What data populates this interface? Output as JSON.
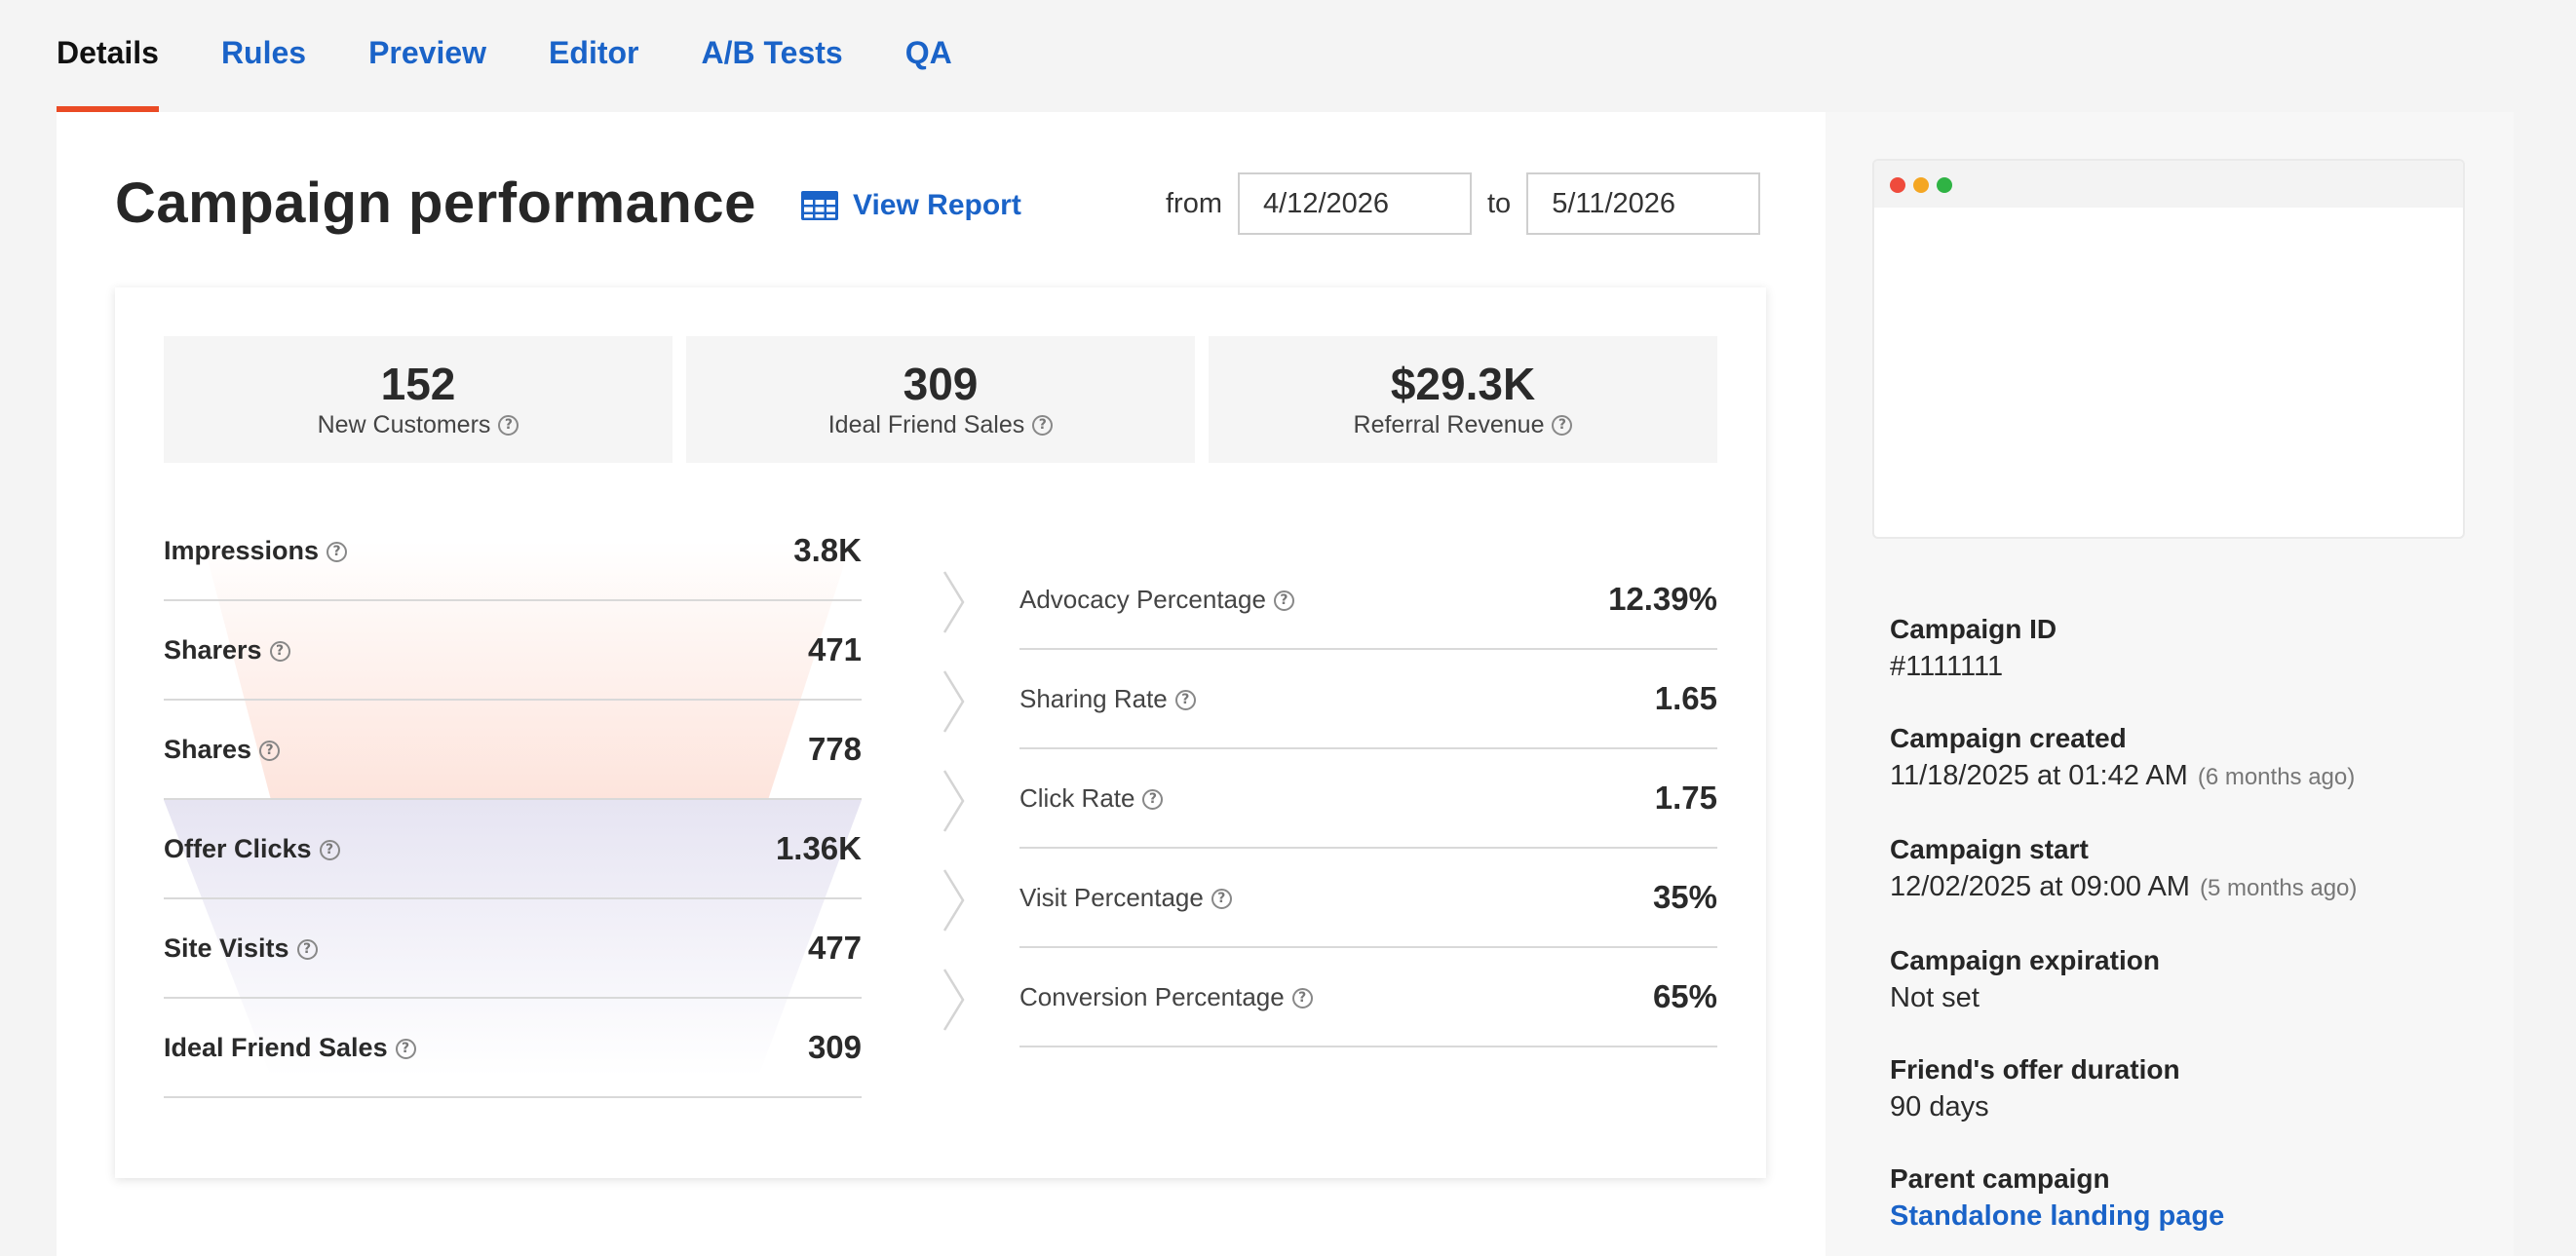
{
  "tabs": [
    {
      "label": "Details",
      "active": true
    },
    {
      "label": "Rules"
    },
    {
      "label": "Preview"
    },
    {
      "label": "Editor"
    },
    {
      "label": "A/B Tests"
    },
    {
      "label": "QA"
    }
  ],
  "header": {
    "title": "Campaign performance",
    "view_report": "View Report",
    "view_report_icon": "table-grid-icon",
    "from_label": "from",
    "from_date": "4/12/2026",
    "to_label": "to",
    "to_date": "5/11/2026"
  },
  "stats": [
    {
      "value": "152",
      "label": "New Customers"
    },
    {
      "value": "309",
      "label": "Ideal Friend Sales"
    },
    {
      "value": "$29.3K",
      "label": "Referral Revenue"
    }
  ],
  "funnel": [
    {
      "label": "Impressions",
      "value": "3.8K"
    },
    {
      "label": "Sharers",
      "value": "471"
    },
    {
      "label": "Shares",
      "value": "778"
    },
    {
      "label": "Offer Clicks",
      "value": "1.36K"
    },
    {
      "label": "Site Visits",
      "value": "477"
    },
    {
      "label": "Ideal Friend Sales",
      "value": "309"
    }
  ],
  "rates": [
    {
      "label": "Advocacy Percentage",
      "value": "12.39%"
    },
    {
      "label": "Sharing Rate",
      "value": "1.65"
    },
    {
      "label": "Click Rate",
      "value": "1.75"
    },
    {
      "label": "Visit Percentage",
      "value": "35%"
    },
    {
      "label": "Conversion Percentage",
      "value": "65%"
    }
  ],
  "help_glyph": "?",
  "colors": {
    "accent": "#ea4b25",
    "link": "#1a63c8",
    "funnel_top": "#fde4dc",
    "funnel_bottom": "#e6e4f2"
  },
  "side": {
    "campaign_id_label": "Campaign ID",
    "campaign_id": "#1111111",
    "created_label": "Campaign created",
    "created": "11/18/2025 at 01:42 AM",
    "created_ago": "(6 months ago)",
    "start_label": "Campaign start",
    "start": "12/02/2025 at 09:00 AM",
    "start_ago": "(5 months ago)",
    "expiration_label": "Campaign expiration",
    "expiration": "Not set",
    "offer_duration_label": "Friend's offer duration",
    "offer_duration": "90 days",
    "parent_label": "Parent campaign",
    "parent": "Standalone landing page"
  }
}
